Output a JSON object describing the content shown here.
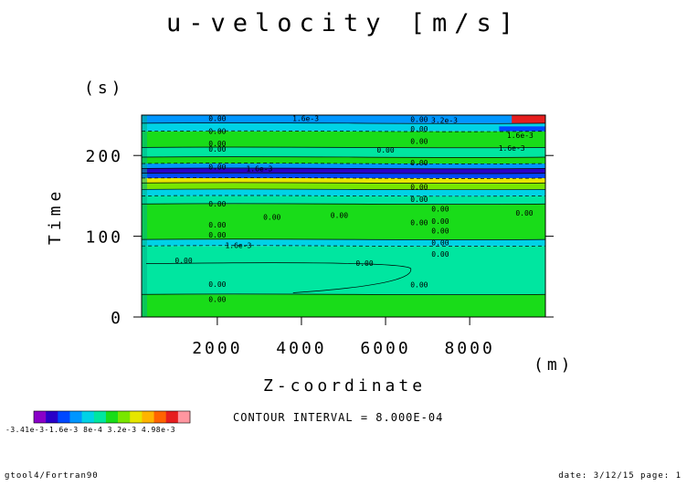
{
  "chart_data": {
    "type": "heatmap",
    "title": "u-velocity [m/s]",
    "xlabel": "Z-coordinate",
    "x_unit": "(m)",
    "ylabel": "Time",
    "y_unit": "(s)",
    "xlim": [
      200,
      9800
    ],
    "ylim": [
      0,
      250
    ],
    "x_ticks": [
      2000,
      4000,
      6000,
      8000
    ],
    "y_ticks": [
      0,
      100,
      200
    ],
    "contour_interval_text": "CONTOUR INTERVAL = 8.000E-04",
    "colorbar_labels": [
      "-3.41e-3",
      "-1.6e-3",
      "8e-4",
      "3.2e-3",
      "4.98e-3"
    ],
    "colorbar_label_text": "-3.41e-3-1.6e-3  8e-4   3.2e-3 4.98e-3",
    "colorbar_colors": [
      "#8a00c8",
      "#2a00c8",
      "#0048ff",
      "#0096ff",
      "#00d2e6",
      "#00e6a0",
      "#19dc19",
      "#78e600",
      "#e6e600",
      "#ffb400",
      "#ff6400",
      "#e61e1e",
      "#ff96a0"
    ],
    "bands": [
      {
        "t0": 0,
        "t1": 28,
        "color": "#19dc19"
      },
      {
        "t0": 28,
        "t1": 88,
        "color": "#00e6a0"
      },
      {
        "t0": 88,
        "t1": 96,
        "color": "#00d2e6"
      },
      {
        "t0": 96,
        "t1": 140,
        "color": "#19dc19"
      },
      {
        "t0": 140,
        "t1": 150,
        "color": "#00e6a0"
      },
      {
        "t0": 150,
        "t1": 158,
        "color": "#00d2e6"
      },
      {
        "t0": 158,
        "t1": 166,
        "color": "#78e600"
      },
      {
        "t0": 166,
        "t1": 172,
        "color": "#e6e600"
      },
      {
        "t0": 172,
        "t1": 178,
        "color": "#0048ff"
      },
      {
        "t0": 178,
        "t1": 184,
        "color": "#2a00c8"
      },
      {
        "t0": 184,
        "t1": 190,
        "color": "#0096ff"
      },
      {
        "t0": 190,
        "t1": 198,
        "color": "#19dc19"
      },
      {
        "t0": 198,
        "t1": 210,
        "color": "#00e6a0"
      },
      {
        "t0": 210,
        "t1": 230,
        "color": "#19dc19"
      },
      {
        "t0": 230,
        "t1": 240,
        "color": "#00d2e6"
      },
      {
        "t0": 240,
        "t1": 250,
        "color": "#0096ff"
      }
    ],
    "contour_labels": [
      {
        "x": 2000,
        "t": 246,
        "text": "0.00"
      },
      {
        "x": 2000,
        "t": 230,
        "text": "0.00"
      },
      {
        "x": 2000,
        "t": 215,
        "text": "0.00"
      },
      {
        "x": 2000,
        "t": 208,
        "text": "0.00"
      },
      {
        "x": 2000,
        "t": 186,
        "text": "0.00"
      },
      {
        "x": 2000,
        "t": 140,
        "text": "0.00"
      },
      {
        "x": 2000,
        "t": 114,
        "text": "0.00"
      },
      {
        "x": 2000,
        "t": 102,
        "text": "0.00"
      },
      {
        "x": 1200,
        "t": 70,
        "text": "0.00"
      },
      {
        "x": 2000,
        "t": 41,
        "text": "0.00"
      },
      {
        "x": 2000,
        "t": 22,
        "text": "0.00"
      },
      {
        "x": 3300,
        "t": 124,
        "text": "0.00"
      },
      {
        "x": 5500,
        "t": 67,
        "text": "0.00"
      },
      {
        "x": 6800,
        "t": 245,
        "text": "0.00"
      },
      {
        "x": 6800,
        "t": 233,
        "text": "0.00"
      },
      {
        "x": 6800,
        "t": 218,
        "text": "0.00"
      },
      {
        "x": 6000,
        "t": 207,
        "text": "0.00"
      },
      {
        "x": 6800,
        "t": 191,
        "text": "0.00"
      },
      {
        "x": 6800,
        "t": 161,
        "text": "0.00"
      },
      {
        "x": 6800,
        "t": 146,
        "text": "0.00"
      },
      {
        "x": 7300,
        "t": 134,
        "text": "0.00"
      },
      {
        "x": 7300,
        "t": 119,
        "text": "0.00"
      },
      {
        "x": 6800,
        "t": 117,
        "text": "0.00"
      },
      {
        "x": 7300,
        "t": 107,
        "text": "0.00"
      },
      {
        "x": 7300,
        "t": 92,
        "text": "0.00"
      },
      {
        "x": 7300,
        "t": 78,
        "text": "0.00"
      },
      {
        "x": 6800,
        "t": 40,
        "text": "0.00"
      },
      {
        "x": 9300,
        "t": 129,
        "text": "0.00"
      },
      {
        "x": 4900,
        "t": 126,
        "text": "0.00"
      },
      {
        "x": 3000,
        "t": 184,
        "text": "1.6e-3"
      },
      {
        "x": 2500,
        "t": 89,
        "text": "1.6e-3"
      },
      {
        "x": 4100,
        "t": 246,
        "text": "1.6e-3"
      },
      {
        "x": 9200,
        "t": 225,
        "text": "1.6e-3"
      },
      {
        "x": 9000,
        "t": 209,
        "text": "1.6e-3"
      },
      {
        "x": 7400,
        "t": 244,
        "text": "3.2e-3"
      }
    ]
  },
  "footer": {
    "left": "gtool4/Fortran90",
    "right": "date: 3/12/15 page: 1"
  }
}
